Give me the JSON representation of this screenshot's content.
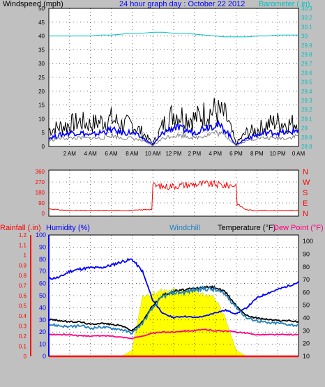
{
  "colors": {
    "background": "#c0c0c0",
    "plot": "#ffffff",
    "grid": "#000000",
    "title": "#0000ff",
    "windspeed_avg": "#808080",
    "windspeed_gust": "#000000",
    "windspeed_mean": "#0000ff",
    "barometer": "#00c0c0",
    "direction": "#ff0000",
    "rainfall": "#ff0000",
    "humidity": "#0000ff",
    "windchill": "#2080c0",
    "temperature": "#000000",
    "dewpoint": "#ff0080",
    "solar": "#ffff00",
    "solar_edge": "#d0d000"
  },
  "chart_data": [
    {
      "type": "line",
      "panel": "wind",
      "title": "24 hour graph day : October 22 2012",
      "ylabel": "Windspeed (mph)",
      "y2label": "Barometer (.in)",
      "x_ticks": [
        "2 AM",
        "4 AM",
        "6 AM",
        "8 AM",
        "10 AM",
        "12 PM",
        "2 PM",
        "4 PM",
        "6 PM",
        "8 PM",
        "10 PM",
        "0 AM"
      ],
      "x_tick_hours": [
        2,
        4,
        6,
        8,
        10,
        12,
        14,
        16,
        18,
        20,
        22,
        24
      ],
      "x_range_hours": [
        0,
        24
      ],
      "ylim": [
        0,
        50
      ],
      "y_ticks": [
        0,
        5,
        10,
        15,
        20,
        25,
        30,
        35,
        40,
        45,
        50
      ],
      "y2lim": [
        28.8,
        30.3
      ],
      "y2_ticks": [
        "28.8",
        "28.9",
        "29",
        "29.1",
        "29.2",
        "29.3",
        "29.4",
        "29.5",
        "29.6",
        "29.7",
        "29.8",
        "29.9",
        "30",
        "30.1",
        "30.2",
        "30.3"
      ],
      "grid": true,
      "hours": [
        0,
        1,
        2,
        3,
        4,
        5,
        6,
        7,
        8,
        9,
        10,
        11,
        12,
        13,
        14,
        15,
        16,
        17,
        18,
        19,
        20,
        21,
        22,
        23,
        24
      ],
      "series": [
        {
          "name": "Windspeed gust",
          "color_key": "windspeed_gust",
          "values": [
            6,
            7,
            8,
            9,
            8,
            9,
            10,
            8,
            8,
            5,
            1,
            8,
            12,
            11,
            10,
            12,
            13,
            11,
            1,
            5,
            6,
            8,
            9,
            8,
            9
          ]
        },
        {
          "name": "Windspeed mean",
          "color_key": "windspeed_mean",
          "values": [
            3,
            4,
            5,
            5,
            4,
            5,
            6,
            5,
            5,
            3,
            0.5,
            5,
            7,
            6,
            5,
            7,
            8,
            6,
            0.5,
            3,
            4,
            5,
            5,
            5,
            6
          ]
        },
        {
          "name": "Windspeed average",
          "color_key": "windspeed_avg",
          "values": [
            2,
            3,
            3,
            3,
            3,
            3,
            4,
            3,
            3,
            2,
            0.3,
            3,
            4,
            4,
            3,
            4,
            5,
            4,
            0.3,
            2,
            3,
            3,
            3,
            3,
            4
          ]
        },
        {
          "name": "Barometer",
          "axis": "right",
          "color_key": "barometer",
          "values": [
            30.0,
            30.0,
            30.0,
            30.0,
            30.0,
            30.01,
            30.01,
            30.02,
            30.03,
            30.03,
            30.04,
            30.04,
            30.03,
            30.03,
            30.02,
            30.01,
            30.0,
            29.99,
            29.99,
            29.99,
            30.0,
            30.0,
            30.01,
            30.01,
            30.01
          ]
        }
      ]
    },
    {
      "type": "line",
      "panel": "direction",
      "ylim": [
        0,
        360
      ],
      "y_ticks": [
        0,
        90,
        180,
        270,
        360
      ],
      "y2_ticks": [
        "N",
        "W",
        "S",
        "E",
        "N"
      ],
      "grid": true,
      "hours": [
        0,
        1,
        2,
        3,
        4,
        5,
        6,
        7,
        8,
        9,
        9.9,
        10,
        11,
        12,
        13,
        14,
        15,
        16,
        17,
        18,
        18.1,
        19,
        20,
        21,
        22,
        23,
        24
      ],
      "series": [
        {
          "name": "Wind direction",
          "color_key": "direction",
          "values": [
            40,
            30,
            25,
            25,
            25,
            25,
            25,
            25,
            25,
            30,
            35,
            240,
            230,
            235,
            245,
            250,
            255,
            250,
            240,
            245,
            80,
            30,
            25,
            25,
            25,
            25,
            25
          ]
        }
      ]
    },
    {
      "type": "line",
      "panel": "climate",
      "legend": [
        "Rainfall (.in)",
        "Humidity (%)",
        "Windchill",
        "Temperature (°F)",
        "Dew Point (°F)"
      ],
      "ylim": [
        0,
        100
      ],
      "y_ticks": [
        0,
        10,
        20,
        30,
        40,
        50,
        60,
        70,
        80,
        90,
        100
      ],
      "rain_lim": [
        0,
        1.2
      ],
      "rain_ticks": [
        "0",
        "0.1",
        "0.2",
        "0.3",
        "0.4",
        "0.5",
        "0.6",
        "0.7",
        "0.8",
        "0.9",
        "1",
        "1.1",
        "1.2"
      ],
      "y2lim": [
        10,
        105
      ],
      "y2_ticks": [
        10,
        20,
        30,
        40,
        50,
        60,
        70,
        80,
        90,
        100
      ],
      "grid": true,
      "hours": [
        0,
        1,
        2,
        3,
        4,
        5,
        6,
        7,
        8,
        9,
        10,
        11,
        12,
        13,
        14,
        15,
        16,
        17,
        18,
        19,
        20,
        21,
        22,
        23,
        24
      ],
      "series": [
        {
          "name": "Humidity (%)",
          "color_key": "humidity",
          "axis": "left",
          "values": [
            64,
            65,
            70,
            72,
            73,
            73,
            75,
            78,
            80,
            70,
            46,
            35,
            32,
            33,
            32,
            33,
            36,
            38,
            35,
            40,
            48,
            52,
            55,
            58,
            61
          ]
        },
        {
          "name": "Temperature (°F)",
          "color_key": "temperature",
          "axis": "right",
          "values": [
            39,
            38,
            37,
            37,
            35,
            36,
            35,
            34,
            30,
            37,
            50,
            58,
            61,
            62,
            63,
            64,
            64,
            60,
            50,
            42,
            40,
            39,
            38,
            38,
            37
          ]
        },
        {
          "name": "Windchill",
          "color_key": "windchill",
          "axis": "right",
          "values": [
            35,
            34,
            33,
            34,
            32,
            33,
            32,
            31,
            28,
            36,
            48,
            57,
            60,
            60,
            62,
            63,
            62,
            58,
            49,
            40,
            38,
            36,
            36,
            35,
            34
          ]
        },
        {
          "name": "Dew Point (°F)",
          "color_key": "dewpoint",
          "axis": "right",
          "values": [
            27,
            27,
            27,
            26,
            26,
            26,
            26,
            25,
            24,
            26,
            28,
            29,
            29,
            30,
            30,
            31,
            30,
            30,
            29,
            28,
            27,
            27,
            27,
            27,
            27
          ]
        },
        {
          "name": "Solar",
          "color_key": "solar",
          "axis": "left",
          "values": [
            0,
            0,
            0,
            0,
            0,
            0,
            0,
            0,
            5,
            50,
            52,
            54,
            54,
            55,
            54,
            50,
            48,
            30,
            5,
            0,
            0,
            0,
            0,
            0,
            0
          ]
        },
        {
          "name": "Rainfall (.in)",
          "color_key": "rainfall",
          "axis": "rain",
          "values": [
            0,
            0,
            0,
            0,
            0,
            0,
            0,
            0,
            0,
            0,
            0,
            0,
            0,
            0,
            0,
            0,
            0,
            0,
            0,
            0,
            0,
            0,
            0,
            0,
            0
          ]
        }
      ]
    }
  ]
}
